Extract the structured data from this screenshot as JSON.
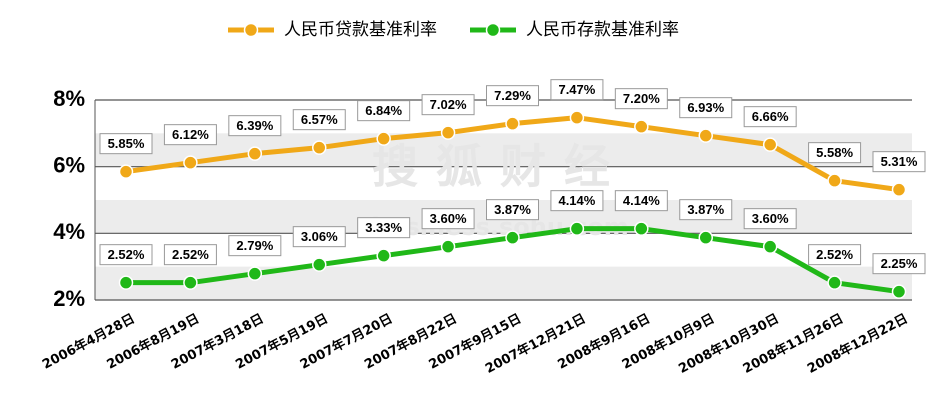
{
  "chart_data": {
    "type": "line",
    "categories": [
      "2006年4月28日",
      "2006年8月19日",
      "2007年3月18日",
      "2007年5月19日",
      "2007年7月20日",
      "2007年8月22日",
      "2007年9月15日",
      "2007年12月21日",
      "2008年9月16日",
      "2008年10月9日",
      "2008年10月30日",
      "2008年11月26日",
      "2008年12月22日"
    ],
    "series": [
      {
        "name": "人民币贷款基准利率",
        "color": "#f0a818",
        "values": [
          5.85,
          6.12,
          6.39,
          6.57,
          6.84,
          7.02,
          7.29,
          7.47,
          7.2,
          6.93,
          6.66,
          5.58,
          5.31
        ],
        "value_labels": [
          "5.85%",
          "6.12%",
          "6.39%",
          "6.57%",
          "6.84%",
          "7.02%",
          "7.29%",
          "7.47%",
          "7.20%",
          "6.93%",
          "6.66%",
          "5.58%",
          "5.31%"
        ]
      },
      {
        "name": "人民币存款基准利率",
        "color": "#20b818",
        "values": [
          2.52,
          2.52,
          2.79,
          3.06,
          3.33,
          3.6,
          3.87,
          4.14,
          4.14,
          3.87,
          3.6,
          2.52,
          2.25
        ],
        "value_labels": [
          "2.52%",
          "2.52%",
          "2.79%",
          "3.06%",
          "3.33%",
          "3.60%",
          "3.87%",
          "4.14%",
          "4.14%",
          "3.87%",
          "3.60%",
          "2.52%",
          "2.25%"
        ]
      }
    ],
    "ylim": [
      2,
      8
    ],
    "yticks": [
      {
        "value": 2,
        "label": "2%"
      },
      {
        "value": 4,
        "label": "4%"
      },
      {
        "value": 6,
        "label": "6%"
      },
      {
        "value": 8,
        "label": "8%"
      }
    ],
    "grid": true,
    "watermark": [
      "搜狐财经",
      "business.sohu.com"
    ]
  }
}
